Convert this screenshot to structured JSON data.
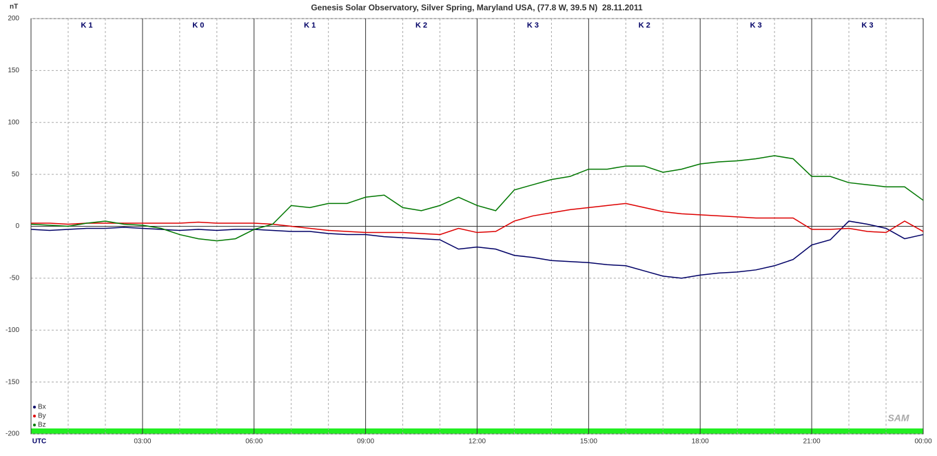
{
  "chart_data": {
    "type": "line",
    "title": "Genesis Solar Observatory, Silver Spring, Maryland USA, (77.8 W, 39.5 N)  28.11.2011",
    "ylabel": "nT",
    "logo": "SAM",
    "k_index": [
      "K 1",
      "K 0",
      "K 1",
      "K 2",
      "K 3",
      "K 2",
      "K 3",
      "K 3"
    ],
    "x": [
      0,
      0.5,
      1,
      1.5,
      2,
      2.5,
      3,
      3.5,
      4,
      4.5,
      5,
      5.5,
      6,
      6.5,
      7,
      7.5,
      8,
      8.5,
      9,
      9.5,
      10,
      10.5,
      11,
      11.5,
      12,
      12.5,
      13,
      13.5,
      14,
      14.5,
      15,
      15.5,
      16,
      16.5,
      17,
      17.5,
      18,
      18.5,
      19,
      19.5,
      20,
      20.5,
      21,
      21.5,
      22,
      22.5,
      23,
      23.5,
      24
    ],
    "series": [
      {
        "name": "Bx",
        "color": "#000066",
        "values": [
          -3,
          -4,
          -3,
          -2,
          -2,
          -1,
          -2,
          -3,
          -4,
          -3,
          -4,
          -3,
          -3,
          -4,
          -5,
          -5,
          -7,
          -8,
          -8,
          -10,
          -11,
          -12,
          -13,
          -22,
          -20,
          -22,
          -28,
          -30,
          -33,
          -34,
          -35,
          -37,
          -38,
          -43,
          -48,
          -50,
          -47,
          -45,
          -44,
          -42,
          -38,
          -32,
          -18,
          -13,
          5,
          2,
          -2,
          -12,
          -8
        ]
      },
      {
        "name": "By",
        "color": "#dd0000",
        "values": [
          3,
          3,
          2,
          3,
          3,
          3,
          3,
          3,
          3,
          4,
          3,
          3,
          3,
          2,
          0,
          -2,
          -4,
          -5,
          -6,
          -6,
          -6,
          -7,
          -8,
          -2,
          -6,
          -5,
          5,
          10,
          13,
          16,
          18,
          20,
          22,
          18,
          14,
          12,
          11,
          10,
          9,
          8,
          8,
          8,
          -3,
          -3,
          -2,
          -5,
          -6,
          5,
          -5
        ]
      },
      {
        "name": "Bz",
        "color": "#007700",
        "values": [
          2,
          1,
          0,
          3,
          5,
          2,
          1,
          -2,
          -8,
          -12,
          -14,
          -12,
          -3,
          2,
          20,
          18,
          22,
          22,
          28,
          30,
          18,
          15,
          20,
          28,
          20,
          15,
          35,
          40,
          45,
          48,
          55,
          55,
          58,
          58,
          52,
          55,
          60,
          62,
          63,
          65,
          68,
          65,
          48,
          48,
          42,
          40,
          38,
          38,
          25
        ]
      }
    ],
    "xlim": [
      0,
      24
    ],
    "xticks": [
      {
        "value": 0,
        "label": "UTC"
      },
      {
        "value": 3,
        "label": "03:00"
      },
      {
        "value": 6,
        "label": "06:00"
      },
      {
        "value": 9,
        "label": "09:00"
      },
      {
        "value": 12,
        "label": "12:00"
      },
      {
        "value": 15,
        "label": "15:00"
      },
      {
        "value": 18,
        "label": "18:00"
      },
      {
        "value": 21,
        "label": "21:00"
      },
      {
        "value": 24,
        "label": "00:00"
      }
    ],
    "xminor_grid": [
      1,
      2,
      4,
      5,
      7,
      8,
      10,
      11,
      13,
      14,
      16,
      17,
      19,
      20,
      22,
      23
    ],
    "ylim": [
      -200,
      200
    ],
    "yticks": [
      -200,
      -150,
      -100,
      -50,
      0,
      50,
      100,
      150,
      200
    ],
    "grid": true,
    "legend": "lower left"
  }
}
